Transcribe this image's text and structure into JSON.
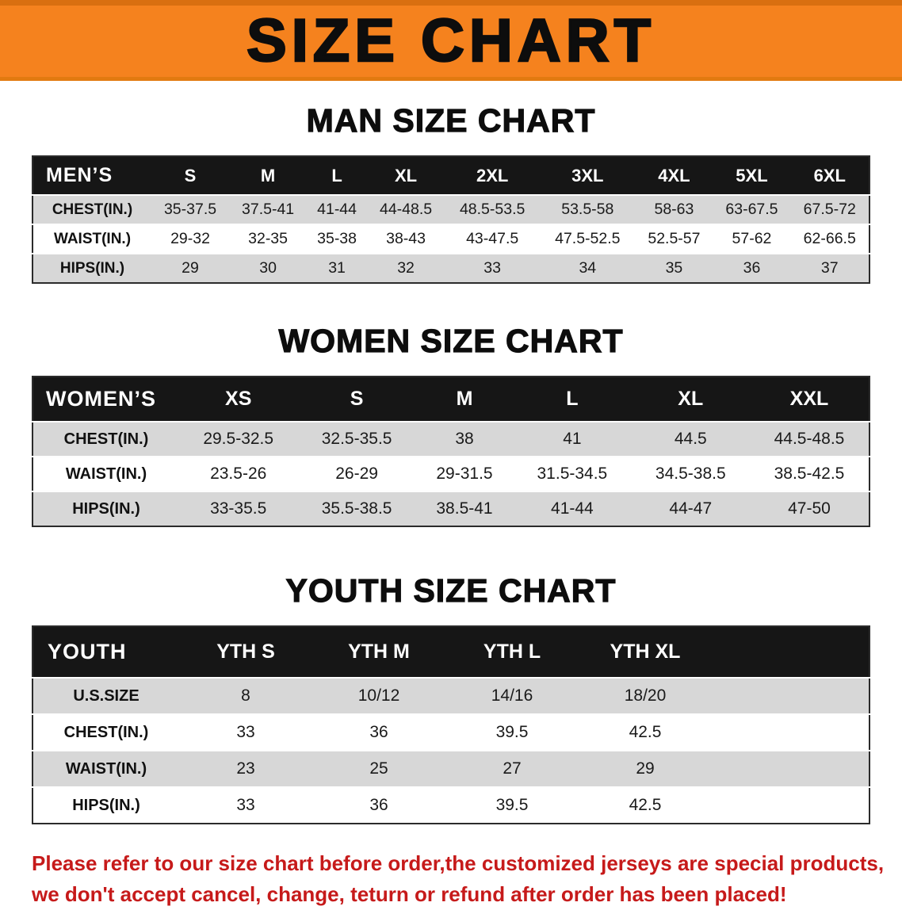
{
  "banner": {
    "title": "SIZE CHART"
  },
  "sections": [
    {
      "heading": "MAN SIZE CHART",
      "table": {
        "header": [
          "MEN’S",
          "S",
          "M",
          "L",
          "XL",
          "2XL",
          "3XL",
          "4XL",
          "5XL",
          "6XL"
        ],
        "rows": [
          [
            "CHEST(IN.)",
            "35-37.5",
            "37.5-41",
            "41-44",
            "44-48.5",
            "48.5-53.5",
            "53.5-58",
            "58-63",
            "63-67.5",
            "67.5-72"
          ],
          [
            "WAIST(IN.)",
            "29-32",
            "32-35",
            "35-38",
            "38-43",
            "43-47.5",
            "47.5-52.5",
            "52.5-57",
            "57-62",
            "62-66.5"
          ],
          [
            "HIPS(IN.)",
            "29",
            "30",
            "31",
            "32",
            "33",
            "34",
            "35",
            "36",
            "37"
          ]
        ]
      }
    },
    {
      "heading": "WOMEN SIZE CHART",
      "table": {
        "header": [
          "WOMEN’S",
          "XS",
          "S",
          "M",
          "L",
          "XL",
          "XXL"
        ],
        "rows": [
          [
            "CHEST(IN.)",
            "29.5-32.5",
            "32.5-35.5",
            "38",
            "41",
            "44.5",
            "44.5-48.5"
          ],
          [
            "WAIST(IN.)",
            "23.5-26",
            "26-29",
            "29-31.5",
            "31.5-34.5",
            "34.5-38.5",
            "38.5-42.5"
          ],
          [
            "HIPS(IN.)",
            "33-35.5",
            "35.5-38.5",
            "38.5-41",
            "41-44",
            "44-47",
            "47-50"
          ]
        ]
      }
    },
    {
      "heading": "YOUTH SIZE CHART",
      "table": {
        "header": [
          "YOUTH",
          "YTH S",
          "YTH M",
          "YTH L",
          "YTH XL"
        ],
        "rows": [
          [
            "U.S.SIZE",
            "8",
            "10/12",
            "14/16",
            "18/20"
          ],
          [
            "CHEST(IN.)",
            "33",
            "36",
            "39.5",
            "42.5"
          ],
          [
            "WAIST(IN.)",
            "23",
            "25",
            "27",
            "29"
          ],
          [
            "HIPS(IN.)",
            "33",
            "36",
            "39.5",
            "42.5"
          ]
        ]
      }
    }
  ],
  "footer": {
    "line1": "Please refer to our size chart before order,the customized jerseys are special products,",
    "line2": "we don't accept cancel, change, teturn or refund after order has been placed!"
  },
  "colors": {
    "banner_bg": "#F5821E",
    "table_header_bg": "#161616",
    "row_gray": "#D7D7D7",
    "note_red": "#C61A1A"
  }
}
